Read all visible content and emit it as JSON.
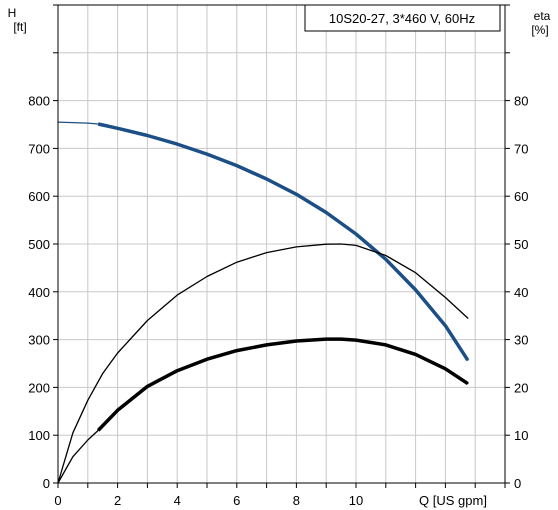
{
  "chart_data": {
    "type": "line",
    "title": "10S20-27, 3*460 V, 60Hz",
    "x_axis": {
      "label": "Q [US gpm]",
      "range": [
        0,
        15
      ],
      "ticks": [
        0,
        2,
        4,
        6,
        8,
        10
      ],
      "grid_ticks": [
        0,
        1,
        2,
        3,
        4,
        5,
        6,
        7,
        8,
        9,
        10,
        11,
        12,
        13,
        14,
        15
      ]
    },
    "y_left": {
      "label_line1": "H",
      "label_line2": "[ft]",
      "range": [
        0,
        1000
      ],
      "ticks": [
        0,
        100,
        200,
        300,
        400,
        500,
        600,
        700,
        800
      ],
      "grid_ticks": [
        0,
        100,
        200,
        300,
        400,
        500,
        600,
        700,
        800,
        900,
        1000
      ]
    },
    "y_right": {
      "label_line1": "eta",
      "label_line2": "[%]",
      "range": [
        0,
        100
      ],
      "ticks": [
        0,
        10,
        20,
        30,
        40,
        50,
        60,
        70,
        80
      ],
      "grid_ticks": [
        0,
        10,
        20,
        30,
        40,
        50,
        60,
        70,
        80,
        90,
        100
      ]
    },
    "grid": true,
    "series": [
      {
        "key": "head",
        "axis": "left",
        "color": "#1c4f86",
        "style": "thin+thick",
        "thick_from_x": 1.35,
        "points": [
          [
            0,
            755
          ],
          [
            1,
            753
          ],
          [
            1.35,
            751
          ],
          [
            2,
            742
          ],
          [
            3,
            727
          ],
          [
            4,
            709
          ],
          [
            5,
            688
          ],
          [
            6,
            664
          ],
          [
            7,
            636
          ],
          [
            8,
            604
          ],
          [
            9,
            566
          ],
          [
            10,
            521
          ],
          [
            11,
            468
          ],
          [
            12,
            404
          ],
          [
            13,
            329
          ],
          [
            13.75,
            257
          ]
        ]
      },
      {
        "key": "eta-pump",
        "axis": "right",
        "color": "#000000",
        "style": "thin",
        "points": [
          [
            0,
            0
          ],
          [
            0.5,
            10.5
          ],
          [
            1,
            17.3
          ],
          [
            1.5,
            22.9
          ],
          [
            2,
            27.2
          ],
          [
            3,
            34
          ],
          [
            4,
            39.3
          ],
          [
            5,
            43.2
          ],
          [
            6,
            46.2
          ],
          [
            7,
            48.2
          ],
          [
            8,
            49.4
          ],
          [
            9,
            49.95
          ],
          [
            9.5,
            50
          ],
          [
            10,
            49.7
          ],
          [
            11,
            47.6
          ],
          [
            12,
            44
          ],
          [
            13,
            38.8
          ],
          [
            13.75,
            34.5
          ]
        ]
      },
      {
        "key": "eta-total",
        "axis": "right",
        "color": "#000000",
        "style": "thin+thick",
        "thick_from_x": 1.35,
        "points": [
          [
            0,
            0
          ],
          [
            0.5,
            5.5
          ],
          [
            1,
            9
          ],
          [
            1.35,
            11
          ],
          [
            2,
            15.2
          ],
          [
            3,
            20.2
          ],
          [
            4,
            23.5
          ],
          [
            5,
            25.9
          ],
          [
            6,
            27.7
          ],
          [
            7,
            28.9
          ],
          [
            8,
            29.7
          ],
          [
            9,
            30.1
          ],
          [
            9.5,
            30.1
          ],
          [
            10,
            29.9
          ],
          [
            11,
            28.9
          ],
          [
            12,
            26.9
          ],
          [
            13,
            23.9
          ],
          [
            13.75,
            20.8
          ]
        ]
      }
    ]
  }
}
